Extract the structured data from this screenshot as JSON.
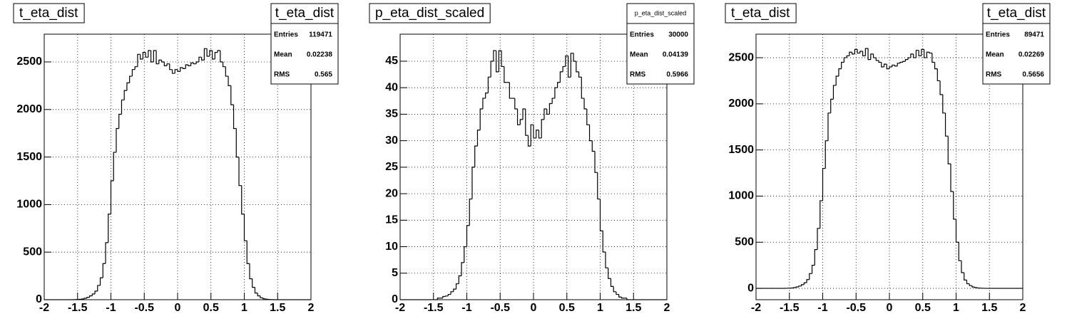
{
  "chart_data": [
    {
      "type": "histogram",
      "title": "t_eta_dist",
      "color": "#000000",
      "grid": true,
      "bins": [
        -2,
        -1.96,
        -1.92,
        -1.88,
        -1.84,
        -1.8,
        -1.76,
        -1.72,
        -1.68,
        -1.64,
        -1.6,
        -1.56,
        -1.52,
        -1.48,
        -1.44,
        -1.4,
        -1.36,
        -1.32,
        -1.28,
        -1.24,
        -1.2,
        -1.16,
        -1.12,
        -1.08,
        -1.04,
        -1,
        -0.96,
        -0.92,
        -0.88,
        -0.84,
        -0.8,
        -0.76,
        -0.72,
        -0.68,
        -0.64,
        -0.6,
        -0.56,
        -0.52,
        -0.48,
        -0.44,
        -0.4,
        -0.36,
        -0.32,
        -0.28,
        -0.24,
        -0.2,
        -0.16,
        -0.12,
        -0.08,
        -0.04,
        0,
        0.04,
        0.08,
        0.12,
        0.16,
        0.2,
        0.24,
        0.28,
        0.32,
        0.36,
        0.4,
        0.44,
        0.48,
        0.52,
        0.56,
        0.6,
        0.64,
        0.68,
        0.72,
        0.76,
        0.8,
        0.84,
        0.88,
        0.92,
        0.96,
        1,
        1.04,
        1.08,
        1.12,
        1.16,
        1.2,
        1.24,
        1.28,
        1.32,
        1.36,
        1.4,
        1.44,
        1.48,
        1.52,
        1.56,
        1.6,
        1.64,
        1.68,
        1.72,
        1.76,
        1.8,
        1.84,
        1.88,
        1.92,
        1.96,
        2
      ],
      "values": [
        0,
        0,
        0,
        0,
        0,
        0,
        0,
        0,
        0,
        0,
        0,
        1,
        2,
        4,
        8,
        15,
        25,
        40,
        60,
        90,
        150,
        230,
        380,
        600,
        900,
        1250,
        1550,
        1800,
        1950,
        2100,
        2200,
        2280,
        2350,
        2420,
        2450,
        2580,
        2530,
        2600,
        2550,
        2620,
        2500,
        2620,
        2480,
        2520,
        2500,
        2460,
        2480,
        2420,
        2380,
        2420,
        2400,
        2440,
        2430,
        2470,
        2460,
        2490,
        2480,
        2500,
        2550,
        2520,
        2640,
        2560,
        2620,
        2530,
        2600,
        2620,
        2500,
        2450,
        2350,
        2250,
        2050,
        1800,
        1500,
        1200,
        900,
        620,
        380,
        220,
        130,
        70,
        40,
        20,
        10,
        5,
        2,
        1,
        0,
        0,
        0,
        0,
        0,
        0,
        0,
        0,
        0,
        0,
        0,
        0,
        0,
        0
      ],
      "xlim": [
        -2,
        2
      ],
      "xticks": [
        -2,
        -1.5,
        -1,
        -0.5,
        0,
        0.5,
        1,
        1.5,
        2
      ],
      "ylim": [
        0,
        2792
      ],
      "yticks": [
        0,
        500,
        1000,
        1500,
        2000,
        2500
      ],
      "stats": {
        "title": "t_eta_dist",
        "labels": [
          "Entries",
          "Mean",
          "RMS"
        ],
        "values": [
          119471,
          0.02238,
          0.565
        ]
      }
    },
    {
      "type": "histogram",
      "title": "p_eta_dist_scaled",
      "color": "#000000",
      "grid": true,
      "bins": [
        -2,
        -1.96,
        -1.92,
        -1.88,
        -1.84,
        -1.8,
        -1.76,
        -1.72,
        -1.68,
        -1.64,
        -1.6,
        -1.56,
        -1.52,
        -1.48,
        -1.44,
        -1.4,
        -1.36,
        -1.32,
        -1.28,
        -1.24,
        -1.2,
        -1.16,
        -1.12,
        -1.08,
        -1.04,
        -1,
        -0.96,
        -0.92,
        -0.88,
        -0.84,
        -0.8,
        -0.76,
        -0.72,
        -0.68,
        -0.64,
        -0.6,
        -0.56,
        -0.52,
        -0.48,
        -0.44,
        -0.4,
        -0.36,
        -0.32,
        -0.28,
        -0.24,
        -0.2,
        -0.16,
        -0.12,
        -0.08,
        -0.04,
        0,
        0.04,
        0.08,
        0.12,
        0.16,
        0.2,
        0.24,
        0.28,
        0.32,
        0.36,
        0.4,
        0.44,
        0.48,
        0.52,
        0.56,
        0.6,
        0.64,
        0.68,
        0.72,
        0.76,
        0.8,
        0.84,
        0.88,
        0.92,
        0.96,
        1,
        1.04,
        1.08,
        1.12,
        1.16,
        1.2,
        1.24,
        1.28,
        1.32,
        1.36,
        1.4,
        1.44,
        1.48,
        1.52,
        1.56,
        1.6,
        1.64,
        1.68,
        1.72,
        1.76,
        1.8,
        1.84,
        1.88,
        1.92,
        1.96,
        2
      ],
      "values": [
        0,
        0,
        0,
        0,
        0,
        0,
        0,
        0,
        0,
        0,
        0,
        0,
        0,
        0,
        0.3,
        0.3,
        0.6,
        0.7,
        1,
        1.5,
        2,
        3,
        4.5,
        7,
        10,
        14,
        19,
        25,
        29,
        32,
        36,
        38,
        39,
        42,
        45,
        47,
        43,
        47,
        44,
        41,
        41,
        38,
        38,
        36,
        33,
        34,
        36,
        31,
        29,
        33,
        30.5,
        32,
        30.5,
        34,
        36,
        35,
        37,
        38,
        40,
        41,
        43,
        44,
        46,
        42,
        46.5,
        45,
        43,
        42,
        38,
        36,
        33,
        30,
        28,
        24,
        19,
        13,
        9,
        6,
        4,
        2.5,
        1.5,
        1,
        0.5,
        0.3,
        0.3,
        0,
        0,
        0,
        0,
        0,
        0,
        0,
        0,
        0,
        0,
        0,
        0,
        0,
        0,
        0
      ],
      "xlim": [
        -2,
        2
      ],
      "xticks": [
        -2,
        -1.5,
        -1,
        -0.5,
        0,
        0.5,
        1,
        1.5,
        2
      ],
      "ylim": [
        0,
        50.1
      ],
      "yticks": [
        0,
        5,
        10,
        15,
        20,
        25,
        30,
        35,
        40,
        45
      ],
      "stats": {
        "title": "p_eta_dist_scaled",
        "labels": [
          "Entries",
          "Mean",
          "RMS"
        ],
        "values": [
          30000,
          0.04139,
          0.5966
        ]
      }
    },
    {
      "type": "histogram",
      "title": "t_eta_dist",
      "color": "#000000",
      "grid": true,
      "bins": [
        -2,
        -1.96,
        -1.92,
        -1.88,
        -1.84,
        -1.8,
        -1.76,
        -1.72,
        -1.68,
        -1.64,
        -1.6,
        -1.56,
        -1.52,
        -1.48,
        -1.44,
        -1.4,
        -1.36,
        -1.32,
        -1.28,
        -1.24,
        -1.2,
        -1.16,
        -1.12,
        -1.08,
        -1.04,
        -1,
        -0.96,
        -0.92,
        -0.88,
        -0.84,
        -0.8,
        -0.76,
        -0.72,
        -0.68,
        -0.64,
        -0.6,
        -0.56,
        -0.52,
        -0.48,
        -0.44,
        -0.4,
        -0.36,
        -0.32,
        -0.28,
        -0.24,
        -0.2,
        -0.16,
        -0.12,
        -0.08,
        -0.04,
        0,
        0.04,
        0.08,
        0.12,
        0.16,
        0.2,
        0.24,
        0.28,
        0.32,
        0.36,
        0.4,
        0.44,
        0.48,
        0.52,
        0.56,
        0.6,
        0.64,
        0.68,
        0.72,
        0.76,
        0.8,
        0.84,
        0.88,
        0.92,
        0.96,
        1,
        1.04,
        1.08,
        1.12,
        1.16,
        1.2,
        1.24,
        1.28,
        1.32,
        1.36,
        1.4,
        1.44,
        1.48,
        1.52,
        1.56,
        1.6,
        1.64,
        1.68,
        1.72,
        1.76,
        1.8,
        1.84,
        1.88,
        1.92,
        1.96,
        2
      ],
      "values": [
        0,
        0,
        0,
        0,
        0,
        0,
        0,
        0,
        0,
        0,
        0,
        1,
        2,
        4,
        8,
        15,
        25,
        40,
        60,
        95,
        160,
        250,
        420,
        650,
        950,
        1300,
        1600,
        1900,
        2050,
        2200,
        2300,
        2380,
        2450,
        2500,
        2520,
        2560,
        2540,
        2590,
        2550,
        2570,
        2520,
        2600,
        2480,
        2540,
        2500,
        2470,
        2450,
        2400,
        2430,
        2380,
        2400,
        2420,
        2410,
        2440,
        2450,
        2460,
        2480,
        2500,
        2540,
        2500,
        2580,
        2520,
        2590,
        2500,
        2560,
        2550,
        2450,
        2380,
        2250,
        2100,
        1900,
        1650,
        1350,
        1050,
        750,
        500,
        300,
        170,
        90,
        50,
        30,
        15,
        8,
        4,
        2,
        1,
        0,
        0,
        0,
        0,
        0,
        0,
        0,
        0,
        0,
        0,
        0,
        0,
        0,
        0
      ],
      "xlim": [
        -2,
        2
      ],
      "xticks": [
        -2,
        -1.5,
        -1,
        -0.5,
        0,
        0.5,
        1,
        1.5,
        2
      ],
      "ylim": [
        -123,
        2755
      ],
      "yticks": [
        0,
        500,
        1000,
        1500,
        2000,
        2500
      ],
      "stats": {
        "title": "t_eta_dist",
        "labels": [
          "Entries",
          "Mean",
          "RMS"
        ],
        "values": [
          89471,
          0.02269,
          0.5656
        ]
      }
    }
  ]
}
